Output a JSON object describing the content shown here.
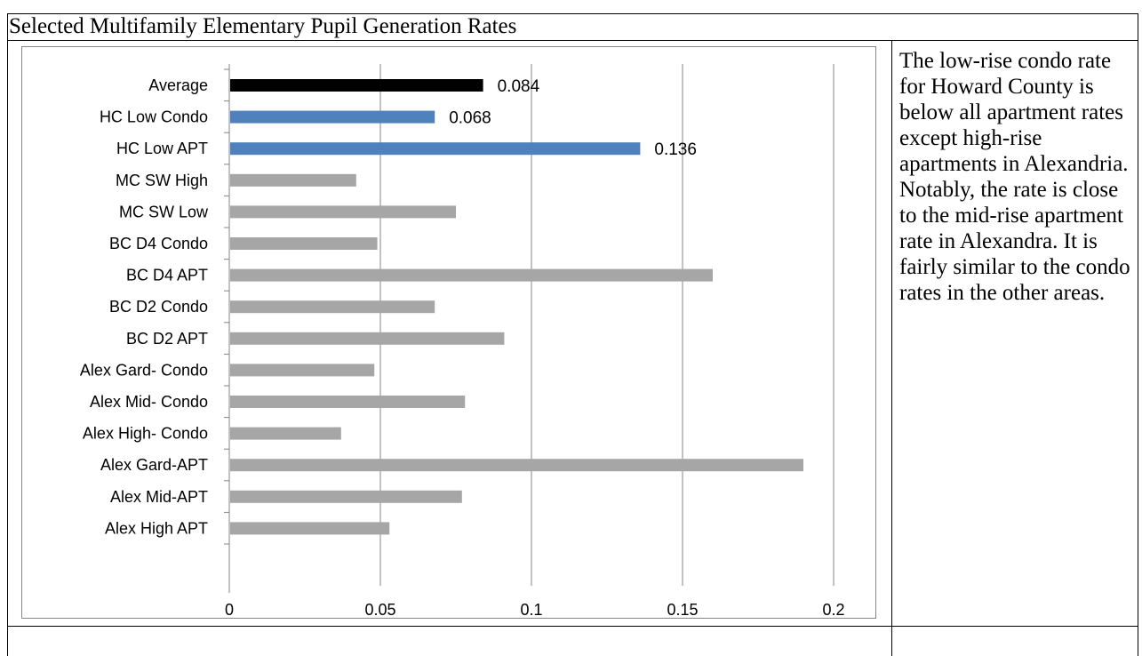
{
  "title": "Selected Multifamily Elementary Pupil Generation Rates",
  "note": "The low-rise condo rate for Howard County is below all apartment rates except high-rise apartments in Alexandria. Notably, the rate is close to the mid-rise apartment rate in Alexandra. It is fairly similar to the condo rates in the other areas.",
  "colors": {
    "average": "#000000",
    "highlight": "#4f81bd",
    "other": "#a6a6a6",
    "grid": "#868686"
  },
  "chart_data": {
    "type": "bar",
    "orientation": "horizontal",
    "title": "",
    "xlabel": "",
    "ylabel": "",
    "xlim": [
      0,
      0.2
    ],
    "x_ticks": [
      "0",
      "0.05",
      "0.1",
      "0.15",
      "0.2"
    ],
    "grid": true,
    "legend": "none",
    "categories": [
      "Average",
      "HC Low Condo",
      "HC Low APT",
      "MC SW High",
      "MC SW Low",
      "BC D4 Condo",
      "BC D4 APT",
      "BC D2 Condo",
      "BC D2 APT",
      "Alex Gard- Condo",
      "Alex Mid- Condo",
      "Alex High- Condo",
      "Alex Gard-APT",
      "Alex Mid-APT",
      "Alex High APT"
    ],
    "values": [
      0.084,
      0.068,
      0.136,
      0.042,
      0.075,
      0.049,
      0.16,
      0.068,
      0.091,
      0.048,
      0.078,
      0.037,
      0.19,
      0.077,
      0.053
    ],
    "bar_groups": [
      "average",
      "highlight",
      "highlight",
      "other",
      "other",
      "other",
      "other",
      "other",
      "other",
      "other",
      "other",
      "other",
      "other",
      "other",
      "other"
    ],
    "data_labels": [
      "0.084",
      "0.068",
      "0.136",
      "",
      "",
      "",
      "",
      "",
      "",
      "",
      "",
      "",
      "",
      "",
      ""
    ]
  }
}
